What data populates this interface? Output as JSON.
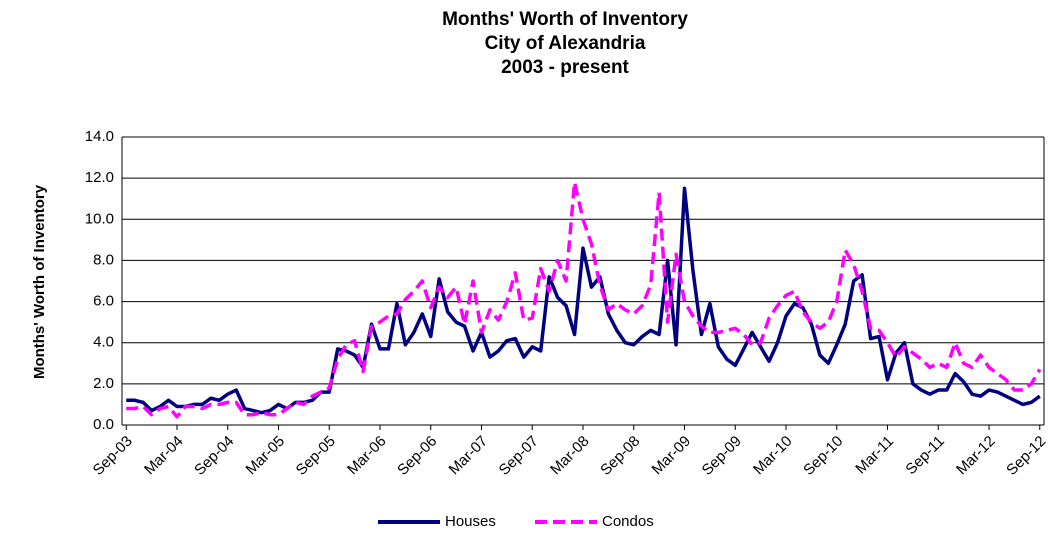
{
  "chart_data": {
    "type": "line",
    "title": [
      "Months' Worth of Inventory",
      "City of Alexandria",
      "2003 - present"
    ],
    "y_label": "Months' Worth of Inventory",
    "categories": [
      "Sep-03",
      null,
      null,
      null,
      null,
      null,
      "Mar-04",
      null,
      null,
      null,
      null,
      null,
      "Sep-04",
      null,
      null,
      null,
      null,
      null,
      "Mar-05",
      null,
      null,
      null,
      null,
      null,
      "Sep-05",
      null,
      null,
      null,
      null,
      null,
      "Mar-06",
      null,
      null,
      null,
      null,
      null,
      "Sep-06",
      null,
      null,
      null,
      null,
      null,
      "Mar-07",
      null,
      null,
      null,
      null,
      null,
      "Sep-07",
      null,
      null,
      null,
      null,
      null,
      "Mar-08",
      null,
      null,
      null,
      null,
      null,
      "Sep-08",
      null,
      null,
      null,
      null,
      null,
      "Mar-09",
      null,
      null,
      null,
      null,
      null,
      "Sep-09",
      null,
      null,
      null,
      null,
      null,
      "Mar-10",
      null,
      null,
      null,
      null,
      null,
      "Sep-10",
      null,
      null,
      null,
      null,
      null,
      "Mar-11",
      null,
      null,
      null,
      null,
      null,
      "Sep-11",
      null,
      null,
      null,
      null,
      null,
      "Mar-12",
      null,
      null,
      null,
      null,
      null,
      "Sep-12"
    ],
    "series": [
      {
        "name": "Houses",
        "color": "#000080",
        "dashed": false,
        "values": [
          1.2,
          1.2,
          1.1,
          0.7,
          0.9,
          1.2,
          0.9,
          0.9,
          1.0,
          1.0,
          1.3,
          1.2,
          1.5,
          1.7,
          0.8,
          0.7,
          0.6,
          0.7,
          1.0,
          0.8,
          1.1,
          1.1,
          1.2,
          1.6,
          1.6,
          3.7,
          3.6,
          3.4,
          2.8,
          4.9,
          3.7,
          3.7,
          5.9,
          3.9,
          4.5,
          5.4,
          4.3,
          7.1,
          5.5,
          5.0,
          4.8,
          3.6,
          4.5,
          3.3,
          3.6,
          4.1,
          4.2,
          3.3,
          3.8,
          3.6,
          7.2,
          6.2,
          5.8,
          4.4,
          8.6,
          6.7,
          7.2,
          5.4,
          4.6,
          4.0,
          3.9,
          4.3,
          4.6,
          4.4,
          8.0,
          3.9,
          11.5,
          7.5,
          4.4,
          5.9,
          3.8,
          3.2,
          2.9,
          3.7,
          4.5,
          3.8,
          3.1,
          4.0,
          5.3,
          5.9,
          5.7,
          4.9,
          3.4,
          3.0,
          3.9,
          4.9,
          7.0,
          7.3,
          4.2,
          4.3,
          2.2,
          3.5,
          4.0,
          2.0,
          1.7,
          1.5,
          1.7,
          1.7,
          2.5,
          2.1,
          1.5,
          1.4,
          1.7,
          1.6,
          1.4,
          1.2,
          1.0,
          1.1,
          1.4
        ]
      },
      {
        "name": "Condos",
        "color": "#ff00ff",
        "dashed": true,
        "values": [
          0.8,
          0.8,
          0.9,
          0.5,
          0.8,
          0.9,
          0.4,
          0.9,
          0.9,
          0.8,
          1.0,
          1.0,
          1.1,
          1.1,
          0.5,
          0.5,
          0.6,
          0.5,
          0.5,
          0.8,
          1.1,
          1.0,
          1.4,
          1.6,
          1.8,
          3.2,
          3.9,
          4.1,
          2.6,
          4.8,
          5.0,
          5.3,
          5.4,
          6.1,
          6.5,
          7.0,
          5.7,
          6.7,
          6.2,
          6.7,
          4.9,
          7.0,
          4.5,
          5.6,
          5.1,
          6.0,
          7.4,
          5.1,
          5.2,
          7.6,
          6.5,
          8.0,
          7.0,
          11.8,
          10.0,
          8.8,
          6.8,
          5.6,
          5.9,
          5.6,
          5.4,
          5.8,
          6.8,
          11.3,
          5.0,
          8.3,
          6.0,
          5.3,
          4.8,
          4.5,
          4.5,
          4.6,
          4.7,
          4.4,
          3.9,
          4.0,
          5.2,
          5.8,
          6.3,
          6.5,
          5.5,
          5.0,
          4.7,
          5.0,
          6.0,
          8.5,
          7.8,
          6.5,
          4.7,
          4.6,
          4.0,
          3.3,
          3.8,
          3.5,
          3.2,
          2.8,
          3.0,
          2.8,
          4.0,
          3.0,
          2.8,
          3.4,
          2.8,
          2.5,
          2.2,
          1.7,
          1.7,
          2.0,
          2.7
        ]
      }
    ],
    "ylim": [
      0,
      14
    ],
    "yticks": [
      {
        "value": 0,
        "label": "0.0"
      },
      {
        "value": 2,
        "label": "2.0"
      },
      {
        "value": 4,
        "label": "4.0"
      },
      {
        "value": 6,
        "label": "6.0"
      },
      {
        "value": 8,
        "label": "8.0"
      },
      {
        "value": 10,
        "label": "10.0"
      },
      {
        "value": 12,
        "label": "12.0"
      },
      {
        "value": 14,
        "label": "14.0"
      }
    ],
    "grid": true,
    "legend": "bottom"
  }
}
